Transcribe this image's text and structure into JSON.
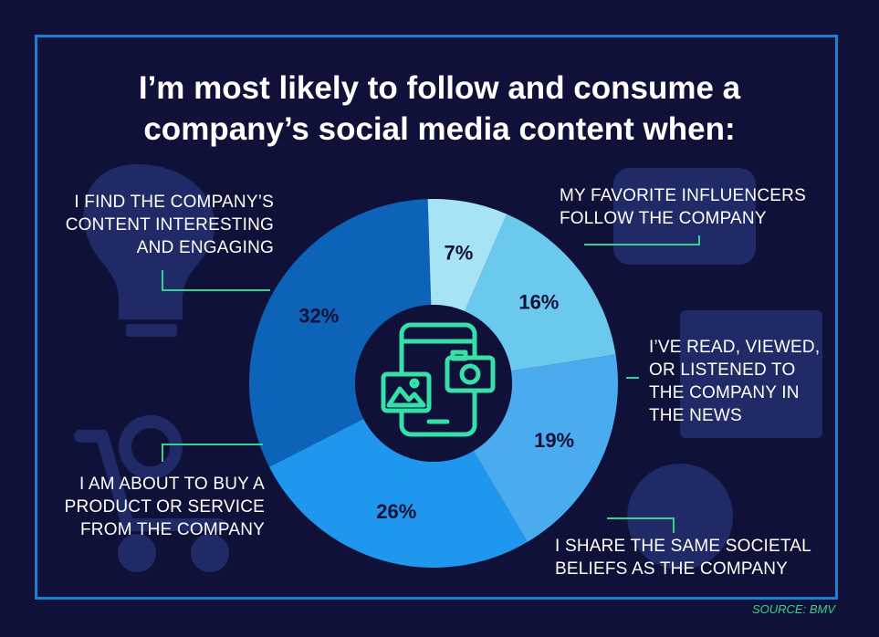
{
  "title_lines": [
    "I’m most likely to follow and consume a",
    "company’s social media content when:"
  ],
  "source": "SOURCE: BMV",
  "colors": {
    "background": "#0f1139",
    "frame": "#1d7fd2",
    "leader": "#36d18e",
    "icon": "#36e0a8"
  },
  "chart_data": {
    "type": "pie",
    "donut": true,
    "categories": [
      "I FIND THE COMPANY’S CONTENT INTERESTING AND ENGAGING",
      "MY FAVORITE INFLUENCERS FOLLOW THE COMPANY",
      "I’VE READ, VIEWED, OR LISTENED TO THE COMPANY IN THE NEWS",
      "I SHARE THE SAME SOCIETAL BELIEFS AS THE COMPANY",
      "I AM ABOUT TO BUY A PRODUCT OR SERVICE FROM THE COMPANY"
    ],
    "values": [
      32,
      7,
      16,
      19,
      26
    ],
    "value_labels": [
      "32%",
      "7%",
      "16%",
      "19%",
      "26%"
    ],
    "colors": [
      "#0d63b8",
      "#a6e3f5",
      "#6cc9ee",
      "#4aabee",
      "#1f97ee"
    ],
    "label_lines": [
      [
        "I FIND THE COMPANY’S",
        "CONTENT INTERESTING",
        "AND ENGAGING"
      ],
      [
        "MY FAVORITE INFLUENCERS",
        "FOLLOW THE COMPANY"
      ],
      [
        "I’VE READ, VIEWED,",
        "OR LISTENED TO",
        "THE COMPANY IN",
        "THE NEWS"
      ],
      [
        "I SHARE THE SAME SOCIETAL",
        "BELIEFS AS THE COMPANY"
      ],
      [
        "I AM ABOUT TO BUY A",
        "PRODUCT OR SERVICE",
        "FROM THE COMPANY"
      ]
    ]
  },
  "background_icons": [
    "lightbulb-brain-icon",
    "shopping-cart-icon",
    "video-play-icon",
    "newspaper-icon",
    "linkedin-icon"
  ],
  "center_icon": "smartphone-camera-photo-icon"
}
